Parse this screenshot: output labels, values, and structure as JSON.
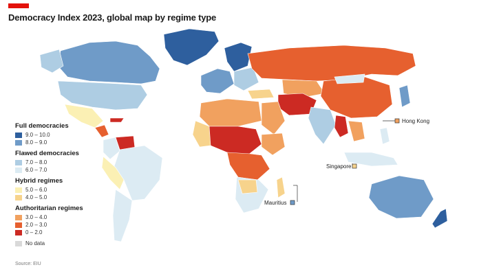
{
  "header": {
    "title": "Democracy Index 2023, global map by regime type",
    "accent_color": "#e3120b"
  },
  "legend": {
    "groups": [
      {
        "heading": "Full democracies",
        "items": [
          {
            "label": "9.0 – 10.0",
            "color": "#2e5f9e"
          },
          {
            "label": "8.0 – 9.0",
            "color": "#6f9bc8"
          }
        ]
      },
      {
        "heading": "Flawed democracies",
        "items": [
          {
            "label": "7.0 – 8.0",
            "color": "#aecde3"
          },
          {
            "label": "6.0 – 7.0",
            "color": "#dcebf3"
          }
        ]
      },
      {
        "heading": "Hybrid regimes",
        "items": [
          {
            "label": "5.0 – 6.0",
            "color": "#fbf0b4"
          },
          {
            "label": "4.0 – 5.0",
            "color": "#f7d38c"
          }
        ]
      },
      {
        "heading": "Authoritarian regimes",
        "items": [
          {
            "label": "3.0 – 4.0",
            "color": "#f1a15f"
          },
          {
            "label": "2.0 – 3.0",
            "color": "#e6602f"
          },
          {
            "label": "0 – 2.0",
            "color": "#cc2a23"
          }
        ]
      },
      {
        "heading": "",
        "items": [
          {
            "label": "No data",
            "color": "#d9d9d9"
          }
        ]
      }
    ]
  },
  "callouts": {
    "hong_kong": "Hong Kong",
    "singapore": "Singapore",
    "mauritius": "Mauritius"
  },
  "source": "Source: EIU"
}
